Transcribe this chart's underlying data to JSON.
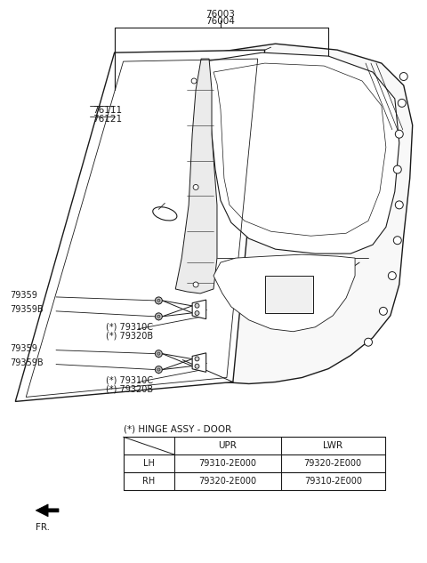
{
  "bg_color": "#ffffff",
  "line_color": "#1a1a1a",
  "part_76003": "76003",
  "part_76004": "76004",
  "part_76111": "76111",
  "part_76121": "76121",
  "upper_hinge": [
    "79359",
    "79359B",
    "(*) 79310C",
    "(*) 79320B"
  ],
  "lower_hinge": [
    "79359",
    "79359B",
    "(*) 79310C",
    "(*) 79320B"
  ],
  "table_caption": "(*) HINGE ASSY - DOOR",
  "table_headers": [
    "",
    "UPR",
    "LWR"
  ],
  "table_rows": [
    [
      "LH",
      "79310-2E000",
      "79320-2E000"
    ],
    [
      "RH",
      "79320-2E000",
      "79310-2E000"
    ]
  ],
  "fr_label": "FR.",
  "fs": 7.5
}
